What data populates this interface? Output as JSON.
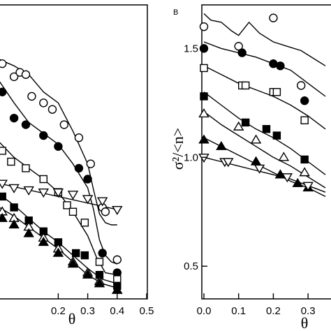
{
  "chart_data": [
    {
      "type": "scatter",
      "panel_label": "",
      "xlabel": "θ",
      "ylabel": "",
      "xlim": [
        0.0,
        0.5
      ],
      "ylim": [
        0.35,
        1.7
      ],
      "x_tick_labels": [
        "0.2",
        "0.3",
        "0.4",
        "0.5"
      ],
      "x_tick_values": [
        0.2,
        0.3,
        0.4,
        0.5
      ],
      "grid": false,
      "series": [
        {
          "marker": "open-circle",
          "x": [
            0.01,
            0.05,
            0.07,
            0.09,
            0.11,
            0.15,
            0.18,
            0.22,
            0.27,
            0.31,
            0.35,
            0.36,
            0.4
          ],
          "y": [
            1.43,
            1.37,
            1.39,
            1.38,
            1.28,
            1.25,
            1.22,
            1.15,
            1.09,
            0.97,
            0.77,
            0.75,
            0.53
          ]
        },
        {
          "marker": "filled-circle",
          "x": [
            0.01,
            0.05,
            0.09,
            0.15,
            0.2,
            0.27,
            0.3,
            0.35,
            0.4
          ],
          "y": [
            1.3,
            1.18,
            1.15,
            1.1,
            1.05,
            0.95,
            0.9,
            0.56,
            0.47
          ]
        },
        {
          "marker": "open-square",
          "x": [
            0.01,
            0.04,
            0.09,
            0.15,
            0.2,
            0.23,
            0.25,
            0.29,
            0.34,
            0.4
          ],
          "y": [
            1.03,
            0.98,
            0.95,
            0.9,
            0.84,
            0.78,
            0.75,
            0.7,
            0.52,
            0.44
          ]
        },
        {
          "marker": "open-triangle-down",
          "x": [
            0.01,
            0.05,
            0.1,
            0.15,
            0.2,
            0.25,
            0.3,
            0.35,
            0.4
          ],
          "y": [
            0.88,
            0.86,
            0.85,
            0.84,
            0.84,
            0.83,
            0.81,
            0.8,
            0.76
          ]
        },
        {
          "marker": "filled-square",
          "x": [
            0.01,
            0.05,
            0.1,
            0.15,
            0.2,
            0.26,
            0.29,
            0.34,
            0.4
          ],
          "y": [
            0.82,
            0.77,
            0.71,
            0.66,
            0.61,
            0.56,
            0.55,
            0.46,
            0.41
          ]
        },
        {
          "marker": "open-triangle-up",
          "x": [
            0.01,
            0.05,
            0.1,
            0.15,
            0.2,
            0.25,
            0.3,
            0.34,
            0.4
          ],
          "y": [
            0.75,
            0.72,
            0.68,
            0.63,
            0.58,
            0.52,
            0.47,
            0.43,
            0.39
          ]
        },
        {
          "marker": "filled-triangle-up",
          "x": [
            0.01,
            0.05,
            0.1,
            0.15,
            0.2,
            0.25,
            0.3,
            0.34,
            0.4
          ],
          "y": [
            0.72,
            0.69,
            0.65,
            0.61,
            0.56,
            0.51,
            0.46,
            0.42,
            0.39
          ]
        }
      ],
      "curves": [
        {
          "x": [
            0.0,
            0.05,
            0.1,
            0.15,
            0.2,
            0.25,
            0.3,
            0.32,
            0.34,
            0.36,
            0.38,
            0.4
          ],
          "y": [
            1.45,
            1.42,
            1.38,
            1.3,
            1.25,
            1.12,
            0.97,
            0.85,
            0.74,
            0.7,
            0.69,
            0.69
          ]
        },
        {
          "x": [
            0.0,
            0.05,
            0.1,
            0.15,
            0.2,
            0.25,
            0.3,
            0.32,
            0.34,
            0.36,
            0.38,
            0.4
          ],
          "y": [
            1.35,
            1.25,
            1.16,
            1.11,
            1.06,
            0.97,
            0.86,
            0.76,
            0.62,
            0.55,
            0.52,
            0.51
          ]
        },
        {
          "x": [
            0.0,
            0.05,
            0.1,
            0.15,
            0.2,
            0.25,
            0.3,
            0.33,
            0.36,
            0.4
          ],
          "y": [
            1.07,
            1.0,
            0.95,
            0.9,
            0.84,
            0.75,
            0.64,
            0.54,
            0.47,
            0.46
          ]
        },
        {
          "x": [
            0.0,
            0.4
          ],
          "y": [
            0.88,
            0.76
          ]
        },
        {
          "x": [
            0.0,
            0.05,
            0.1,
            0.15,
            0.2,
            0.25,
            0.3,
            0.35,
            0.4
          ],
          "y": [
            0.83,
            0.78,
            0.72,
            0.66,
            0.61,
            0.55,
            0.49,
            0.44,
            0.42
          ]
        },
        {
          "x": [
            0.0,
            0.05,
            0.1,
            0.15,
            0.2,
            0.25,
            0.3,
            0.35,
            0.4
          ],
          "y": [
            0.77,
            0.73,
            0.68,
            0.63,
            0.58,
            0.52,
            0.46,
            0.42,
            0.4
          ]
        }
      ]
    },
    {
      "type": "scatter",
      "panel_label": "B",
      "xlabel": "θ",
      "ylabel": "σ²/<n>",
      "xlim": [
        0.0,
        0.35
      ],
      "ylim": [
        0.35,
        1.7
      ],
      "x_tick_labels": [
        "0.0",
        "0.1",
        "0.2",
        "0.3"
      ],
      "x_tick_values": [
        0.0,
        0.1,
        0.2,
        0.3
      ],
      "y_tick_labels": [
        "0.5",
        "1.0",
        "1.5"
      ],
      "y_tick_values": [
        0.5,
        1.0,
        1.5
      ],
      "grid": false,
      "series": [
        {
          "marker": "open-circle",
          "x": [
            0.0,
            0.1,
            0.2,
            0.28
          ],
          "y": [
            1.6,
            1.51,
            1.64,
            1.33
          ]
        },
        {
          "marker": "filled-circle",
          "x": [
            0.0,
            0.11,
            0.2,
            0.22,
            0.29
          ],
          "y": [
            1.5,
            1.48,
            1.43,
            1.42,
            1.26
          ]
        },
        {
          "marker": "open-square",
          "x": [
            0.0,
            0.11,
            0.12,
            0.2,
            0.21,
            0.29
          ],
          "y": [
            1.41,
            1.33,
            1.33,
            1.3,
            1.3,
            1.17
          ]
        },
        {
          "marker": "filled-square",
          "x": [
            0.0,
            0.12,
            0.18,
            0.21,
            0.29
          ],
          "y": [
            1.28,
            1.16,
            1.13,
            1.1,
            0.99
          ]
        },
        {
          "marker": "open-triangle-up",
          "x": [
            0.0,
            0.1,
            0.15,
            0.23,
            0.29
          ],
          "y": [
            1.2,
            1.14,
            1.08,
            1.0,
            0.93
          ]
        },
        {
          "marker": "filled-triangle-up",
          "x": [
            0.0,
            0.05,
            0.15,
            0.22,
            0.27,
            0.3
          ],
          "y": [
            1.08,
            1.05,
            0.98,
            0.92,
            0.88,
            0.86
          ]
        },
        {
          "marker": "open-triangle-down",
          "x": [
            0.0,
            0.06,
            0.07,
            0.16,
            0.24,
            0.3
          ],
          "y": [
            1.0,
            0.98,
            0.98,
            0.95,
            0.91,
            0.87
          ]
        }
      ],
      "curves": [
        {
          "x": [
            0.0,
            0.02,
            0.05,
            0.08,
            0.1,
            0.13,
            0.16,
            0.2,
            0.24,
            0.28,
            0.32,
            0.35
          ],
          "y": [
            1.66,
            1.63,
            1.62,
            1.58,
            1.56,
            1.62,
            1.57,
            1.53,
            1.51,
            1.49,
            1.45,
            1.42
          ]
        },
        {
          "x": [
            0.0,
            0.05,
            0.1,
            0.15,
            0.2,
            0.25,
            0.3,
            0.35
          ],
          "y": [
            1.53,
            1.5,
            1.48,
            1.46,
            1.43,
            1.4,
            1.34,
            1.28
          ]
        },
        {
          "x": [
            0.0,
            0.05,
            0.1,
            0.15,
            0.2,
            0.25,
            0.3,
            0.35
          ],
          "y": [
            1.42,
            1.38,
            1.34,
            1.31,
            1.28,
            1.24,
            1.19,
            1.13
          ]
        },
        {
          "x": [
            0.0,
            0.05,
            0.1,
            0.15,
            0.2,
            0.25,
            0.3,
            0.35
          ],
          "y": [
            1.3,
            1.24,
            1.18,
            1.13,
            1.09,
            1.04,
            0.98,
            0.92
          ]
        },
        {
          "x": [
            0.0,
            0.05,
            0.1,
            0.15,
            0.2,
            0.25,
            0.3,
            0.35
          ],
          "y": [
            1.21,
            1.15,
            1.1,
            1.05,
            1.0,
            0.96,
            0.91,
            0.86
          ]
        },
        {
          "x": [
            0.0,
            0.05,
            0.1,
            0.15,
            0.2,
            0.25,
            0.3,
            0.35
          ],
          "y": [
            1.09,
            1.05,
            1.01,
            0.97,
            0.93,
            0.89,
            0.86,
            0.82
          ]
        },
        {
          "x": [
            0.0,
            0.05,
            0.1,
            0.15,
            0.2,
            0.25,
            0.3,
            0.35
          ],
          "y": [
            1.0,
            0.98,
            0.96,
            0.94,
            0.92,
            0.9,
            0.87,
            0.84
          ]
        }
      ]
    }
  ]
}
